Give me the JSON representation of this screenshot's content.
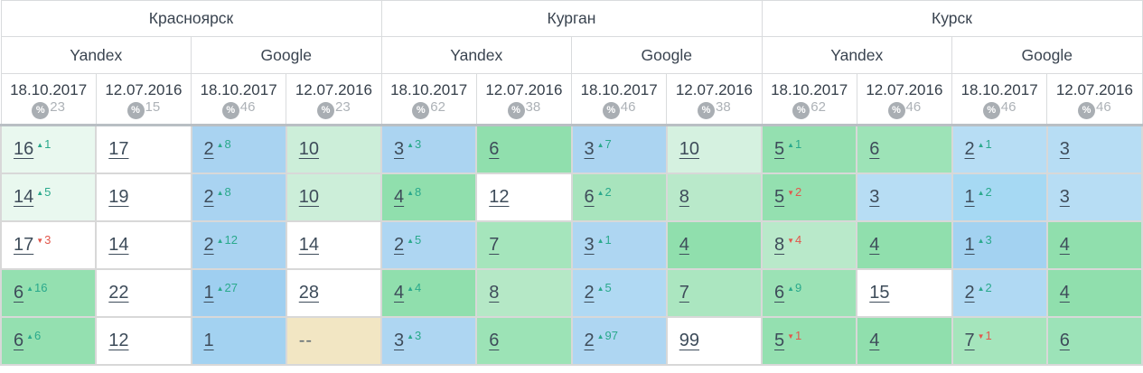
{
  "header": {
    "percent_icon": "%",
    "cities": [
      {
        "label": "Красноярск"
      },
      {
        "label": "Курган"
      },
      {
        "label": "Курск"
      }
    ],
    "engines": [
      {
        "label": "Yandex"
      },
      {
        "label": "Google"
      },
      {
        "label": "Yandex"
      },
      {
        "label": "Google"
      },
      {
        "label": "Yandex"
      },
      {
        "label": "Google"
      }
    ],
    "dates": [
      {
        "date": "18.10.2017",
        "pct": "23"
      },
      {
        "date": "12.07.2016",
        "pct": "15"
      },
      {
        "date": "18.10.2017",
        "pct": "46"
      },
      {
        "date": "12.07.2016",
        "pct": "23"
      },
      {
        "date": "18.10.2017",
        "pct": "62"
      },
      {
        "date": "12.07.2016",
        "pct": "38"
      },
      {
        "date": "18.10.2017",
        "pct": "46"
      },
      {
        "date": "12.07.2016",
        "pct": "38"
      },
      {
        "date": "18.10.2017",
        "pct": "62"
      },
      {
        "date": "12.07.2016",
        "pct": "46"
      },
      {
        "date": "18.10.2017",
        "pct": "46"
      },
      {
        "date": "12.07.2016",
        "pct": "46"
      }
    ]
  },
  "colors": {
    "up": "#2aa98c",
    "down": "#e2574c",
    "grid": "#d8d8d8",
    "header_divider": "#b9bfc4",
    "no_data_bg": "#f2e6c3"
  },
  "rows": [
    {
      "cells": [
        {
          "v": "16",
          "d": "1",
          "dir": "up",
          "bg": "#e9f8ef"
        },
        {
          "v": "17",
          "d": "",
          "dir": "",
          "bg": "#ffffff"
        },
        {
          "v": "2",
          "d": "8",
          "dir": "up",
          "bg": "#a9d3f1"
        },
        {
          "v": "10",
          "d": "",
          "dir": "",
          "bg": "#cceed9"
        },
        {
          "v": "3",
          "d": "3",
          "dir": "up",
          "bg": "#abd4f1"
        },
        {
          "v": "6",
          "d": "",
          "dir": "",
          "bg": "#90dfad"
        },
        {
          "v": "3",
          "d": "7",
          "dir": "up",
          "bg": "#abd4f1"
        },
        {
          "v": "10",
          "d": "",
          "dir": "",
          "bg": "#d5f1e0"
        },
        {
          "v": "5",
          "d": "1",
          "dir": "up",
          "bg": "#94e0b0"
        },
        {
          "v": "6",
          "d": "",
          "dir": "",
          "bg": "#9de3b7"
        },
        {
          "v": "2",
          "d": "1",
          "dir": "up",
          "bg": "#b7ddf4"
        },
        {
          "v": "3",
          "d": "",
          "dir": "",
          "bg": "#b7ddf4"
        }
      ]
    },
    {
      "cells": [
        {
          "v": "14",
          "d": "5",
          "dir": "up",
          "bg": "#e9f8ef"
        },
        {
          "v": "19",
          "d": "",
          "dir": "",
          "bg": "#ffffff"
        },
        {
          "v": "2",
          "d": "8",
          "dir": "up",
          "bg": "#a9d3f1"
        },
        {
          "v": "10",
          "d": "",
          "dir": "",
          "bg": "#cceed9"
        },
        {
          "v": "4",
          "d": "8",
          "dir": "up",
          "bg": "#90dfad"
        },
        {
          "v": "12",
          "d": "",
          "dir": "",
          "bg": "#ffffff"
        },
        {
          "v": "6",
          "d": "2",
          "dir": "up",
          "bg": "#a8e4bd"
        },
        {
          "v": "8",
          "d": "",
          "dir": "",
          "bg": "#b9e9ca"
        },
        {
          "v": "5",
          "d": "2",
          "dir": "down",
          "bg": "#94e0b0"
        },
        {
          "v": "3",
          "d": "",
          "dir": "",
          "bg": "#b7ddf4"
        },
        {
          "v": "1",
          "d": "2",
          "dir": "up",
          "bg": "#a6d9f3"
        },
        {
          "v": "3",
          "d": "",
          "dir": "",
          "bg": "#b7ddf4"
        }
      ]
    },
    {
      "cells": [
        {
          "v": "17",
          "d": "3",
          "dir": "down",
          "bg": "#ffffff"
        },
        {
          "v": "14",
          "d": "",
          "dir": "",
          "bg": "#ffffff"
        },
        {
          "v": "2",
          "d": "12",
          "dir": "up",
          "bg": "#a9d3f1"
        },
        {
          "v": "14",
          "d": "",
          "dir": "",
          "bg": "#ffffff"
        },
        {
          "v": "2",
          "d": "5",
          "dir": "up",
          "bg": "#aed6f2"
        },
        {
          "v": "7",
          "d": "",
          "dir": "",
          "bg": "#a5e5bc"
        },
        {
          "v": "3",
          "d": "1",
          "dir": "up",
          "bg": "#aed6f2"
        },
        {
          "v": "4",
          "d": "",
          "dir": "",
          "bg": "#90dfad"
        },
        {
          "v": "8",
          "d": "4",
          "dir": "down",
          "bg": "#b9e9ca"
        },
        {
          "v": "4",
          "d": "",
          "dir": "",
          "bg": "#90dfad"
        },
        {
          "v": "1",
          "d": "3",
          "dir": "up",
          "bg": "#a3d2f1"
        },
        {
          "v": "4",
          "d": "",
          "dir": "",
          "bg": "#90dfad"
        }
      ]
    },
    {
      "cells": [
        {
          "v": "6",
          "d": "16",
          "dir": "up",
          "bg": "#94e0b0"
        },
        {
          "v": "22",
          "d": "",
          "dir": "",
          "bg": "#ffffff"
        },
        {
          "v": "1",
          "d": "27",
          "dir": "up",
          "bg": "#9fcff0"
        },
        {
          "v": "28",
          "d": "",
          "dir": "",
          "bg": "#ffffff"
        },
        {
          "v": "4",
          "d": "4",
          "dir": "up",
          "bg": "#90dfad"
        },
        {
          "v": "8",
          "d": "",
          "dir": "",
          "bg": "#b5e8c6"
        },
        {
          "v": "2",
          "d": "5",
          "dir": "up",
          "bg": "#b0d9f3"
        },
        {
          "v": "7",
          "d": "",
          "dir": "",
          "bg": "#abe6c0"
        },
        {
          "v": "6",
          "d": "9",
          "dir": "up",
          "bg": "#9be2b5"
        },
        {
          "v": "15",
          "d": "",
          "dir": "",
          "bg": "#ffffff"
        },
        {
          "v": "2",
          "d": "2",
          "dir": "up",
          "bg": "#b0d9f3"
        },
        {
          "v": "4",
          "d": "",
          "dir": "",
          "bg": "#90dfad"
        }
      ]
    },
    {
      "cells": [
        {
          "v": "6",
          "d": "6",
          "dir": "up",
          "bg": "#94e0b0"
        },
        {
          "v": "12",
          "d": "",
          "dir": "",
          "bg": "#ffffff"
        },
        {
          "v": "1",
          "d": "",
          "dir": "",
          "bg": "#a3d2f1"
        },
        {
          "v": "--",
          "d": "",
          "dir": "",
          "bg": "#f2e6c3"
        },
        {
          "v": "3",
          "d": "3",
          "dir": "up",
          "bg": "#aed6f2"
        },
        {
          "v": "6",
          "d": "",
          "dir": "",
          "bg": "#9ce3b6"
        },
        {
          "v": "2",
          "d": "97",
          "dir": "up",
          "bg": "#aed6f2"
        },
        {
          "v": "99",
          "d": "",
          "dir": "",
          "bg": "#ffffff"
        },
        {
          "v": "5",
          "d": "1",
          "dir": "down",
          "bg": "#94e0b0"
        },
        {
          "v": "4",
          "d": "",
          "dir": "",
          "bg": "#90dfad"
        },
        {
          "v": "7",
          "d": "1",
          "dir": "down",
          "bg": "#a5e5bc"
        },
        {
          "v": "6",
          "d": "",
          "dir": "",
          "bg": "#9ce3b8"
        }
      ]
    }
  ]
}
